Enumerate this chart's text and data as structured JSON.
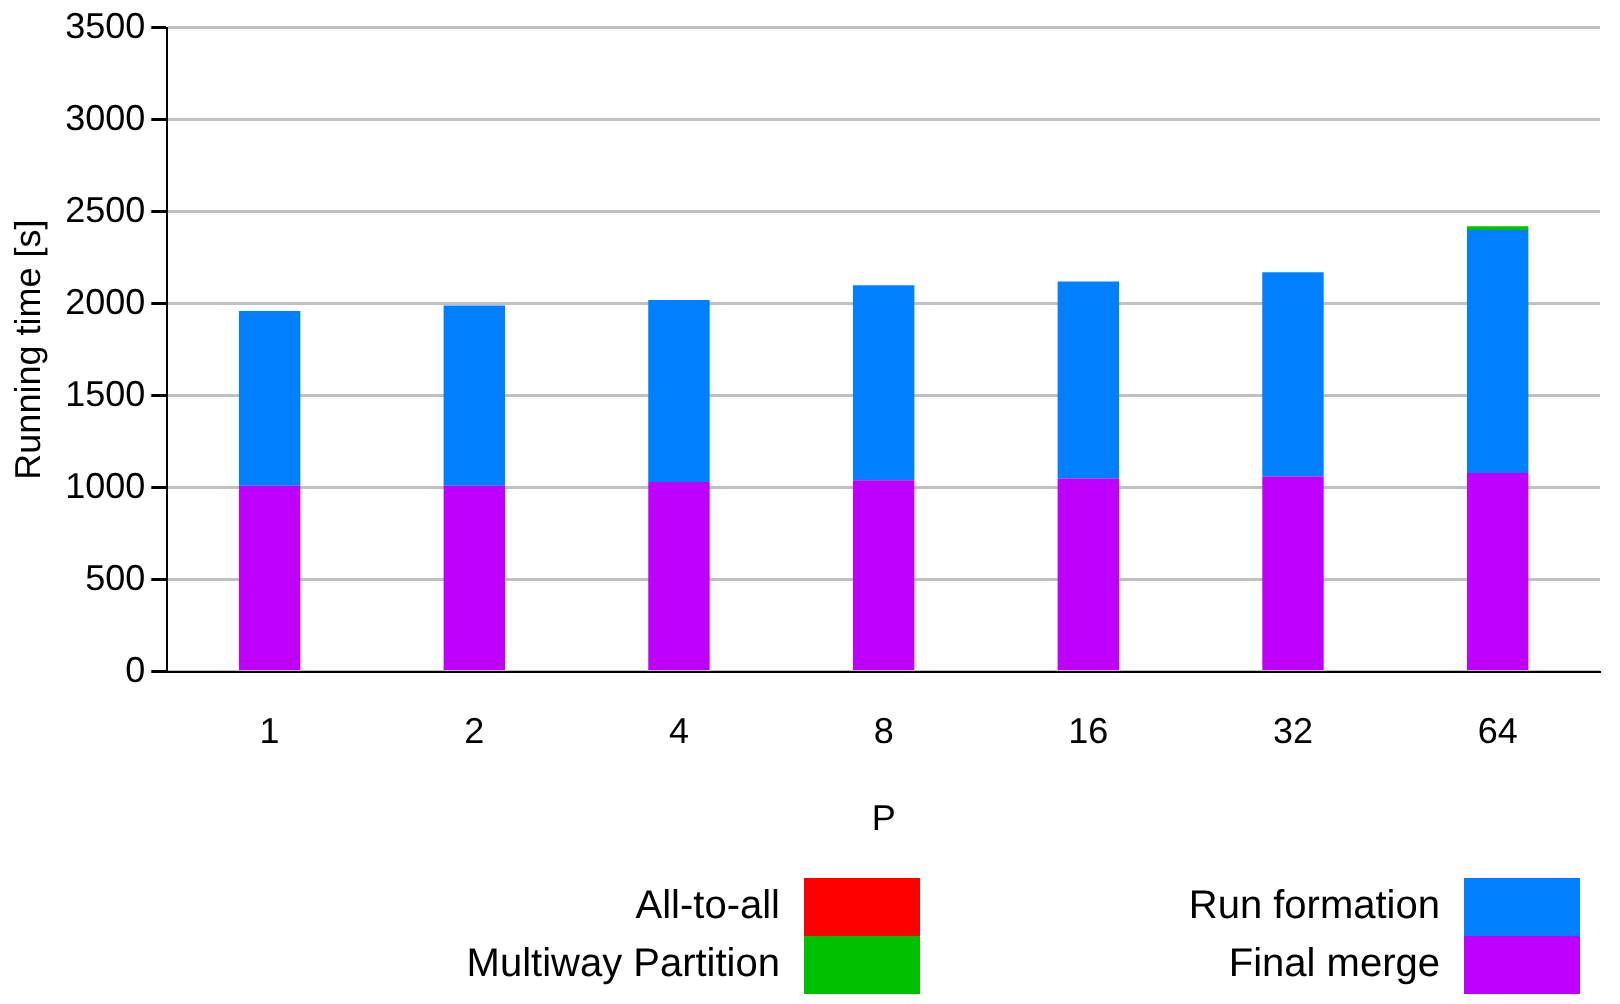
{
  "chart_data": {
    "type": "bar",
    "stacked": true,
    "xlabel": "P",
    "ylabel": "Running time [s]",
    "categories": [
      "1",
      "2",
      "4",
      "8",
      "16",
      "32",
      "64"
    ],
    "series": [
      {
        "name": "Final merge",
        "color": "#c000ff",
        "values": [
          1010,
          1010,
          1030,
          1040,
          1050,
          1060,
          1080
        ]
      },
      {
        "name": "Run formation",
        "color": "#0080ff",
        "values": [
          950,
          980,
          990,
          1060,
          1070,
          1110,
          1320
        ]
      },
      {
        "name": "Multiway Partition",
        "color": "#00c000",
        "values": [
          null,
          null,
          null,
          null,
          null,
          null,
          20
        ]
      },
      {
        "name": "All-to-all",
        "color": "#ff0000",
        "values": [
          null,
          null,
          null,
          null,
          null,
          null,
          null
        ]
      }
    ],
    "ylim": [
      0,
      3500
    ],
    "yticks": [
      0,
      500,
      1000,
      1500,
      2000,
      2500,
      3000,
      3500
    ],
    "grid": "y",
    "legend": "bottom"
  }
}
